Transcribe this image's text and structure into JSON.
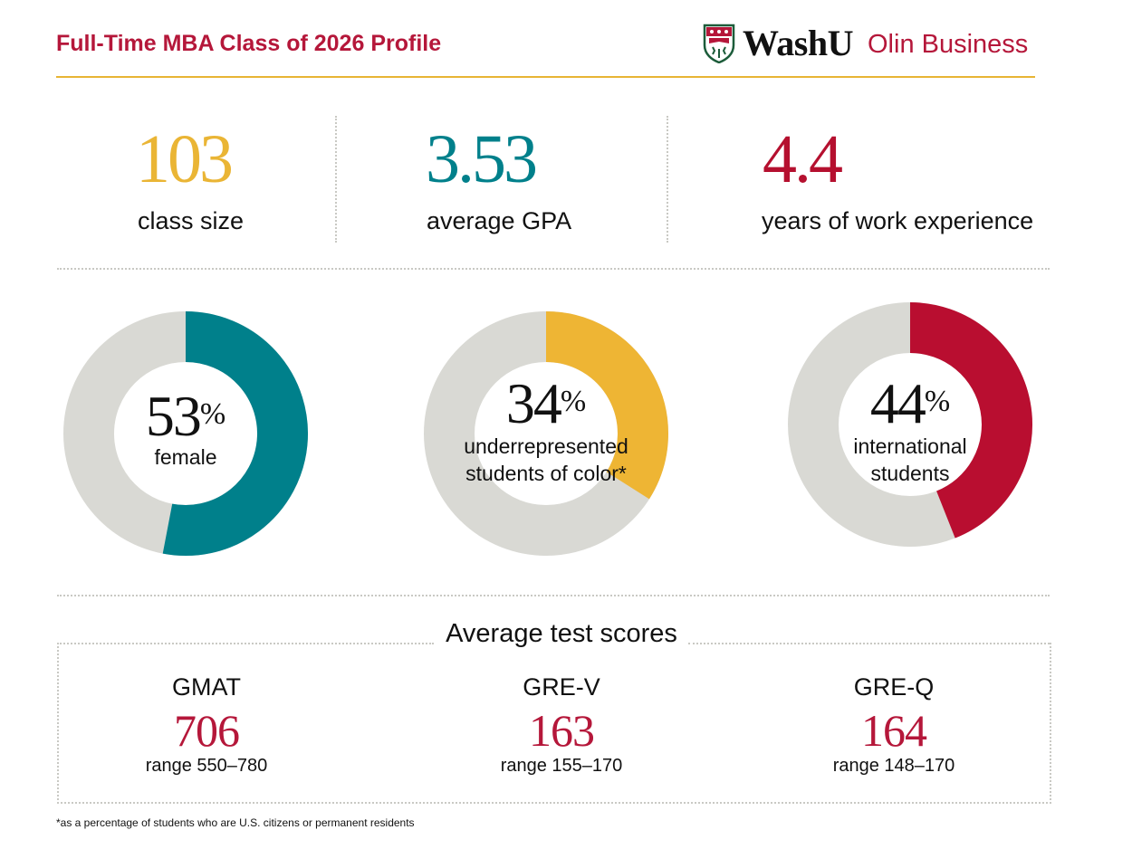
{
  "header": {
    "title": "Full-Time MBA Class of 2026 Profile",
    "logo": {
      "wordmark": "WashU",
      "school": "Olin Business",
      "shield": "washu-shield-icon"
    }
  },
  "stats": [
    {
      "value": "103",
      "label": "class size",
      "color": "#eab535"
    },
    {
      "value": "3.53",
      "label": "average GPA",
      "color": "#00808b"
    },
    {
      "value": "4.4",
      "label": "years of work experience",
      "color": "#b5102f"
    }
  ],
  "colors": {
    "accent_red": "#b5173a",
    "gold": "#e8b534",
    "teal": "#00808b",
    "donut_track": "#d9d9d4"
  },
  "chart_data": [
    {
      "type": "pie",
      "style": "donut",
      "values": [
        53,
        47
      ],
      "display_value": "53",
      "unit": "%",
      "label_lines": [
        "female"
      ],
      "color": "#00808b"
    },
    {
      "type": "pie",
      "style": "donut",
      "values": [
        34,
        66
      ],
      "display_value": "34",
      "unit": "%",
      "label_lines": [
        "underrepresented",
        "students of color*"
      ],
      "color": "#eeb534"
    },
    {
      "type": "pie",
      "style": "donut",
      "values": [
        44,
        56
      ],
      "display_value": "44",
      "unit": "%",
      "label_lines": [
        "international",
        "students"
      ],
      "color": "#b90e30"
    }
  ],
  "test_scores": {
    "title": "Average test scores",
    "items": [
      {
        "name": "GMAT",
        "value": "706",
        "range": "range 550–780"
      },
      {
        "name": "GRE-V",
        "value": "163",
        "range": "range 155–170"
      },
      {
        "name": "GRE-Q",
        "value": "164",
        "range": "range 148–170"
      }
    ]
  },
  "footnote": "*as a percentage of students who are U.S. citizens or permanent residents"
}
